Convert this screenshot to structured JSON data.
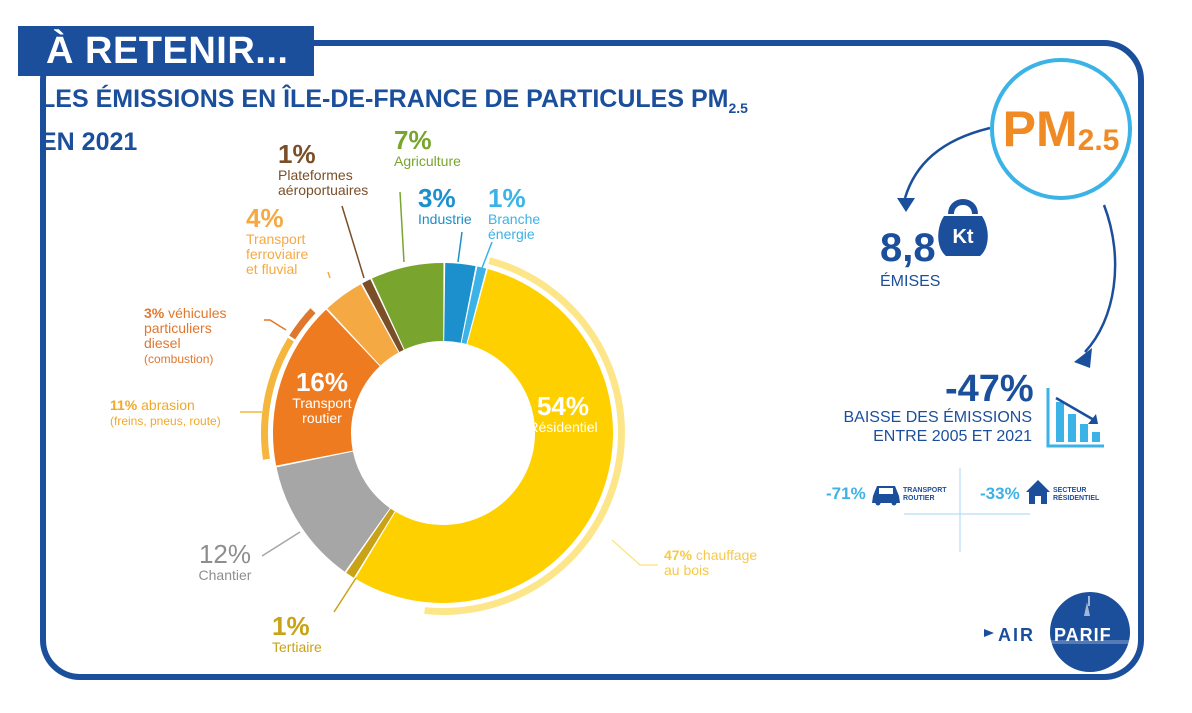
{
  "banner": "À RETENIR...",
  "title": {
    "line1": "LES ÉMISSIONS EN ÎLE-DE-FRANCE DE PARTICULES PM",
    "sub": "2.5",
    "line2": "EN 2021"
  },
  "colors": {
    "navy": "#1b4f9c",
    "light_blue": "#3bb3e6",
    "orange": "#f08a24"
  },
  "chart_data": {
    "type": "pie",
    "variant": "donut",
    "start_angle_deg": 15,
    "direction": "clockwise",
    "slices": [
      {
        "label": "Résidentiel",
        "value": 54,
        "color": "#ffd000",
        "pct_text": "54%"
      },
      {
        "label": "Tertiaire",
        "value": 1,
        "color": "#c8a317",
        "pct_text": "1%"
      },
      {
        "label": "Chantier",
        "value": 12,
        "color": "#a6a6a6",
        "pct_text": "12%"
      },
      {
        "label": "Transport routier",
        "value": 16,
        "color": "#ee7b1f",
        "pct_text": "16%"
      },
      {
        "label": "Transport ferroviaire et fluvial",
        "value": 4,
        "color": "#f5a943",
        "pct_text": "4%"
      },
      {
        "label": "Plateformes aéroportuaires",
        "value": 1,
        "color": "#7a4f28",
        "pct_text": "1%"
      },
      {
        "label": "Agriculture",
        "value": 7,
        "color": "#79a52f",
        "pct_text": "7%"
      },
      {
        "label": "Industrie",
        "value": 3,
        "color": "#1c8fcd",
        "pct_text": "3%"
      },
      {
        "label": "Branche énergie",
        "value": 1,
        "color": "#3bb3e6",
        "pct_text": "1%"
      }
    ],
    "sub_breakdowns": [
      {
        "label": "chauffage au bois",
        "value": 47,
        "parent": "Résidentiel",
        "color": "#fde68a",
        "pct_text": "47%"
      },
      {
        "label": "abrasion (freins, pneus, route)",
        "value": 11,
        "parent": "Transport routier",
        "color": "#f4b63c",
        "pct_text": "11%"
      },
      {
        "label": "véhicules particuliers diesel (combustion)",
        "value": 3,
        "parent": "Transport routier",
        "color": "#e0772e",
        "pct_text": "3%"
      }
    ]
  },
  "labels": {
    "residentiel": {
      "pct": "54%",
      "name": "Résidentiel"
    },
    "routier": {
      "pct": "16%",
      "name1": "Transport",
      "name2": "routier"
    },
    "chantier": {
      "pct": "12%",
      "name": "Chantier"
    },
    "tertiaire": {
      "pct": "1%",
      "name": "Tertiaire"
    },
    "bois": {
      "pct": "47%",
      "name1": "chauffage",
      "name2": "au bois"
    },
    "abrasion": {
      "pct": "11%",
      "name1": "abrasion",
      "name2": "(freins, pneus, route)"
    },
    "diesel": {
      "pct": "3%",
      "name1": "véhicules",
      "name2": "particuliers",
      "name3": "diesel",
      "name4": "(combustion)"
    },
    "ferro": {
      "pct": "4%",
      "name1": "Transport",
      "name2": "ferroviaire",
      "name3": "et fluvial"
    },
    "aero": {
      "pct": "1%",
      "name1": "Plateformes",
      "name2": "aéroportuaires"
    },
    "agri": {
      "pct": "7%",
      "name": "Agriculture"
    },
    "industrie": {
      "pct": "3%",
      "name": "Industrie"
    },
    "energie": {
      "pct": "1%",
      "name1": "Branche",
      "name2": "énergie"
    }
  },
  "side": {
    "pm_label": "PM",
    "pm_sub": "2.5",
    "emissions_value": "8,8",
    "unit": "Kt",
    "emissions_label": "ÉMISES",
    "drop_value": "-47%",
    "drop_label1": "BAISSE DES ÉMISSIONS",
    "drop_label2": "ENTRE 2005 ET 2021",
    "road_value": "-71%",
    "road_cap1": "TRANSPORT",
    "road_cap2": "ROUTIER",
    "res_value": "-33%",
    "res_cap1": "SECTEUR",
    "res_cap2": "RÉSIDENTIEL"
  },
  "logo": {
    "left": "AIR",
    "right": "PARIF"
  }
}
